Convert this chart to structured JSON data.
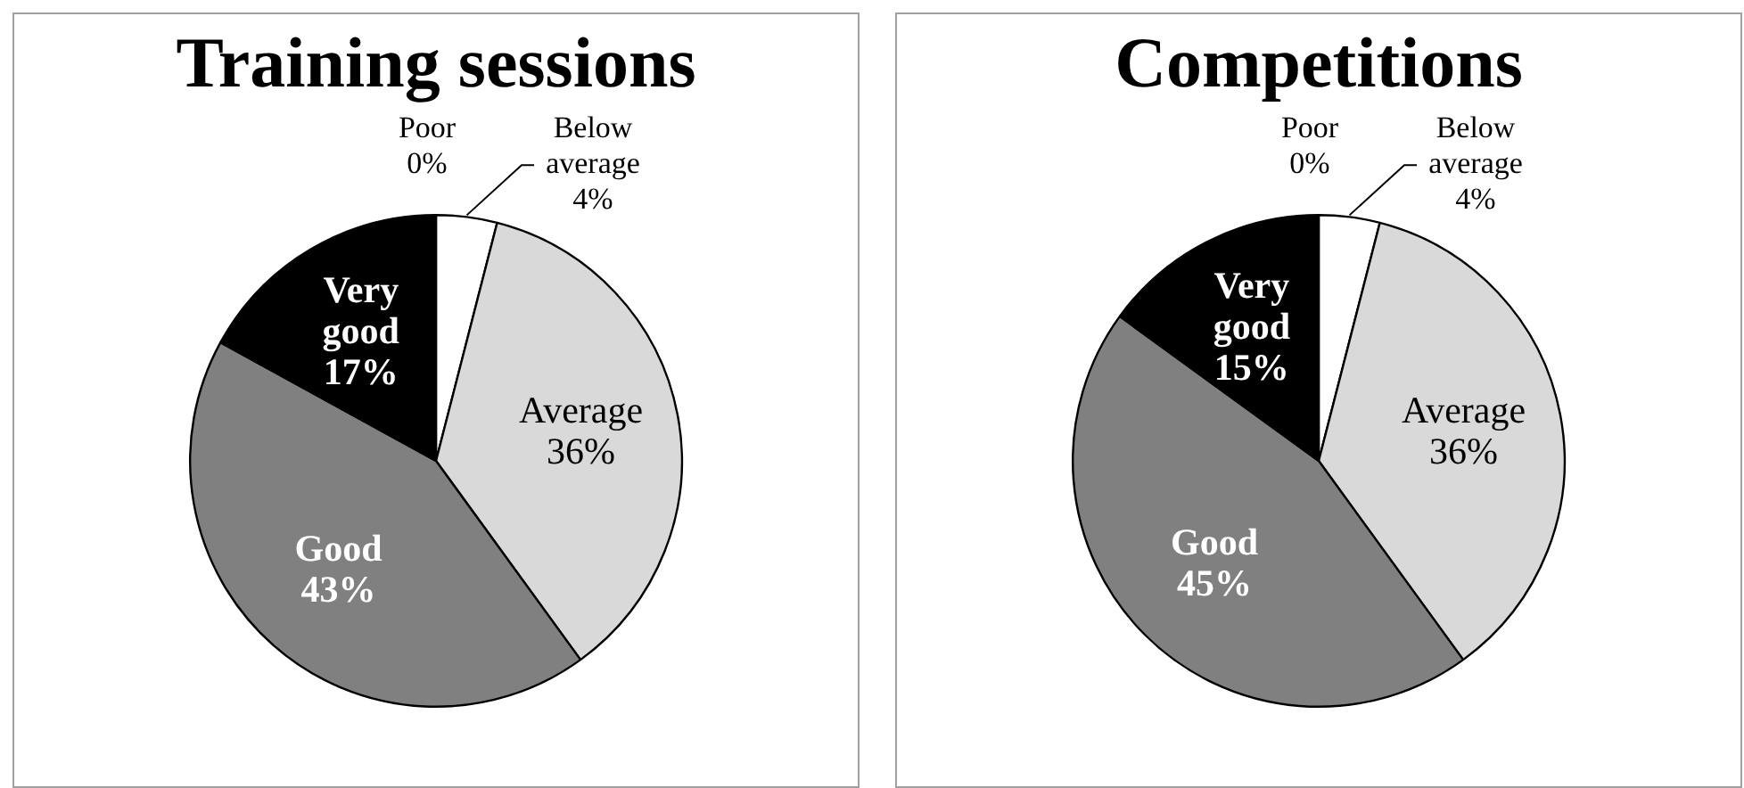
{
  "chart_data": [
    {
      "type": "pie",
      "title": "Training sessions",
      "categories": [
        "Poor",
        "Below average",
        "Average",
        "Good",
        "Very good"
      ],
      "values": [
        0,
        4,
        36,
        43,
        17
      ],
      "value_labels": [
        "0%",
        "4%",
        "36%",
        "43%",
        "17%"
      ],
      "colors": [
        "#ffffff",
        "#ffffff",
        "#d9d9d9",
        "#808080",
        "#000000"
      ]
    },
    {
      "type": "pie",
      "title": "Competitions",
      "categories": [
        "Poor",
        "Below average",
        "Average",
        "Good",
        "Very good"
      ],
      "values": [
        0,
        4,
        36,
        45,
        15
      ],
      "value_labels": [
        "0%",
        "4%",
        "36%",
        "45%",
        "15%"
      ],
      "colors": [
        "#ffffff",
        "#ffffff",
        "#d9d9d9",
        "#808080",
        "#000000"
      ]
    }
  ]
}
